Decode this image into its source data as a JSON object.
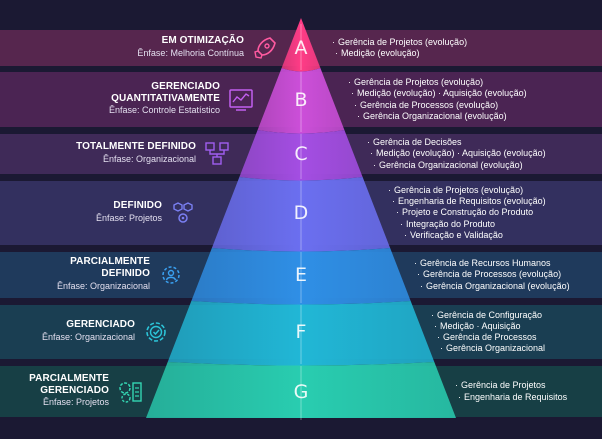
{
  "colors": {
    "background": "#1b1933",
    "bands": [
      "#56264e",
      "#4b2453",
      "#3f2a58",
      "#33305f",
      "#1f3a5c",
      "#1a3e52",
      "#173f45"
    ],
    "pyramid": [
      "#ff3c86",
      "#cc4fd9",
      "#a44ee3",
      "#6b6ff0",
      "#2f8fe6",
      "#21b7d6",
      "#29cdb0"
    ],
    "icons": [
      "#ff5aa0",
      "#c25ef0",
      "#a05ef0",
      "#7a7ff2",
      "#3aa0f0",
      "#2cc4d8",
      "#34d6b2"
    ]
  },
  "levels": [
    {
      "letter": "A",
      "title_lines": [
        "EM OTIMIZAÇÃO"
      ],
      "emphasis": "Ênfase: Melhoria Contínua",
      "icon": "rocket-icon",
      "processes": [
        "Gerência de Projetos (evolução)",
        "Medição (evolução)"
      ]
    },
    {
      "letter": "B",
      "title_lines": [
        "GERENCIADO",
        "QUANTITATIVAMENTE"
      ],
      "emphasis": "Ênfase: Controle Estatístico",
      "icon": "dashboard-chart-icon",
      "processes": [
        "Gerência de Projetos (evolução)",
        "Medição (evolução) · Aquisição (evolução)",
        "Gerência de Processos (evolução)",
        "Gerência Organizacional (evolução)"
      ]
    },
    {
      "letter": "C",
      "title_lines": [
        "TOTALMENTE DEFINIDO"
      ],
      "emphasis": "Ênfase: Organizacional",
      "icon": "workflow-icon",
      "processes": [
        "Gerência de Decisões",
        "Medição (evolução) · Aquisição (evolução)",
        "Gerência Organizacional (evolução)"
      ]
    },
    {
      "letter": "D",
      "title_lines": [
        "DEFINIDO"
      ],
      "emphasis": "Ênfase: Projetos",
      "icon": "cubes-gear-icon",
      "processes": [
        "Gerência de Projetos (evolução)",
        "Engenharia de Requisitos (evolução)",
        "Projeto e Construção do Produto",
        "Integração do Produto",
        "Verificação e Validação"
      ]
    },
    {
      "letter": "E",
      "title_lines": [
        "PARCIALMENTE",
        "DEFINIDO"
      ],
      "emphasis": "Ênfase: Organizacional",
      "icon": "gear-people-icon",
      "processes": [
        "Gerência de Recursos Humanos",
        "Gerência de Processos (evolução)",
        "Gerência Organizacional (evolução)"
      ]
    },
    {
      "letter": "F",
      "title_lines": [
        "GERENCIADO"
      ],
      "emphasis": "Ênfase: Organizacional",
      "icon": "gear-check-icon",
      "processes": [
        "Gerência de Configuração",
        "Medição · Aquisição",
        "Gerência de Processos",
        "Gerência Organizacional"
      ]
    },
    {
      "letter": "G",
      "title_lines": [
        "PARCIALMENTE",
        "GERENCIADO"
      ],
      "emphasis": "Ênfase: Projetos",
      "icon": "gears-checklist-icon",
      "processes": [
        "Gerência de Projetos",
        "Engenharia de Requisitos"
      ]
    }
  ]
}
